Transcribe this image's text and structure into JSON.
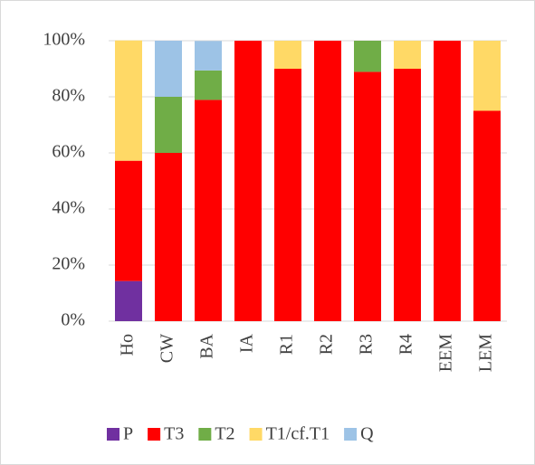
{
  "chart_data": {
    "type": "stacked_bar",
    "categories": [
      "Ho",
      "CW",
      "BA",
      "IA",
      "R1",
      "R2",
      "R3",
      "R4",
      "EEM",
      "LEM"
    ],
    "series": [
      {
        "name": "P",
        "color": "#7030a0",
        "values": [
          14.3,
          0,
          0,
          0,
          0,
          0,
          0,
          0,
          0,
          0
        ]
      },
      {
        "name": "T3",
        "color": "#ff0000",
        "values": [
          42.9,
          60,
          78.9,
          100,
          90,
          100,
          88.9,
          90,
          100,
          75
        ]
      },
      {
        "name": "T2",
        "color": "#70ad47",
        "values": [
          0,
          20,
          10.5,
          0,
          0,
          0,
          11.1,
          0,
          0,
          0
        ]
      },
      {
        "name": "T1/cf.T1",
        "color": "#ffd966",
        "values": [
          42.9,
          0,
          0,
          0,
          10,
          0,
          0,
          10,
          0,
          25
        ]
      },
      {
        "name": "Q",
        "color": "#9dc3e6",
        "values": [
          0,
          20,
          10.5,
          0,
          0,
          0,
          0,
          0,
          0,
          0
        ]
      }
    ],
    "ylim": [
      0,
      100
    ],
    "yticks": [
      {
        "value": 0,
        "label": "0%"
      },
      {
        "value": 20,
        "label": "20%"
      },
      {
        "value": 40,
        "label": "40%"
      },
      {
        "value": 60,
        "label": "60%"
      },
      {
        "value": 80,
        "label": "80%"
      },
      {
        "value": 100,
        "label": "100%"
      }
    ],
    "grid": true
  }
}
